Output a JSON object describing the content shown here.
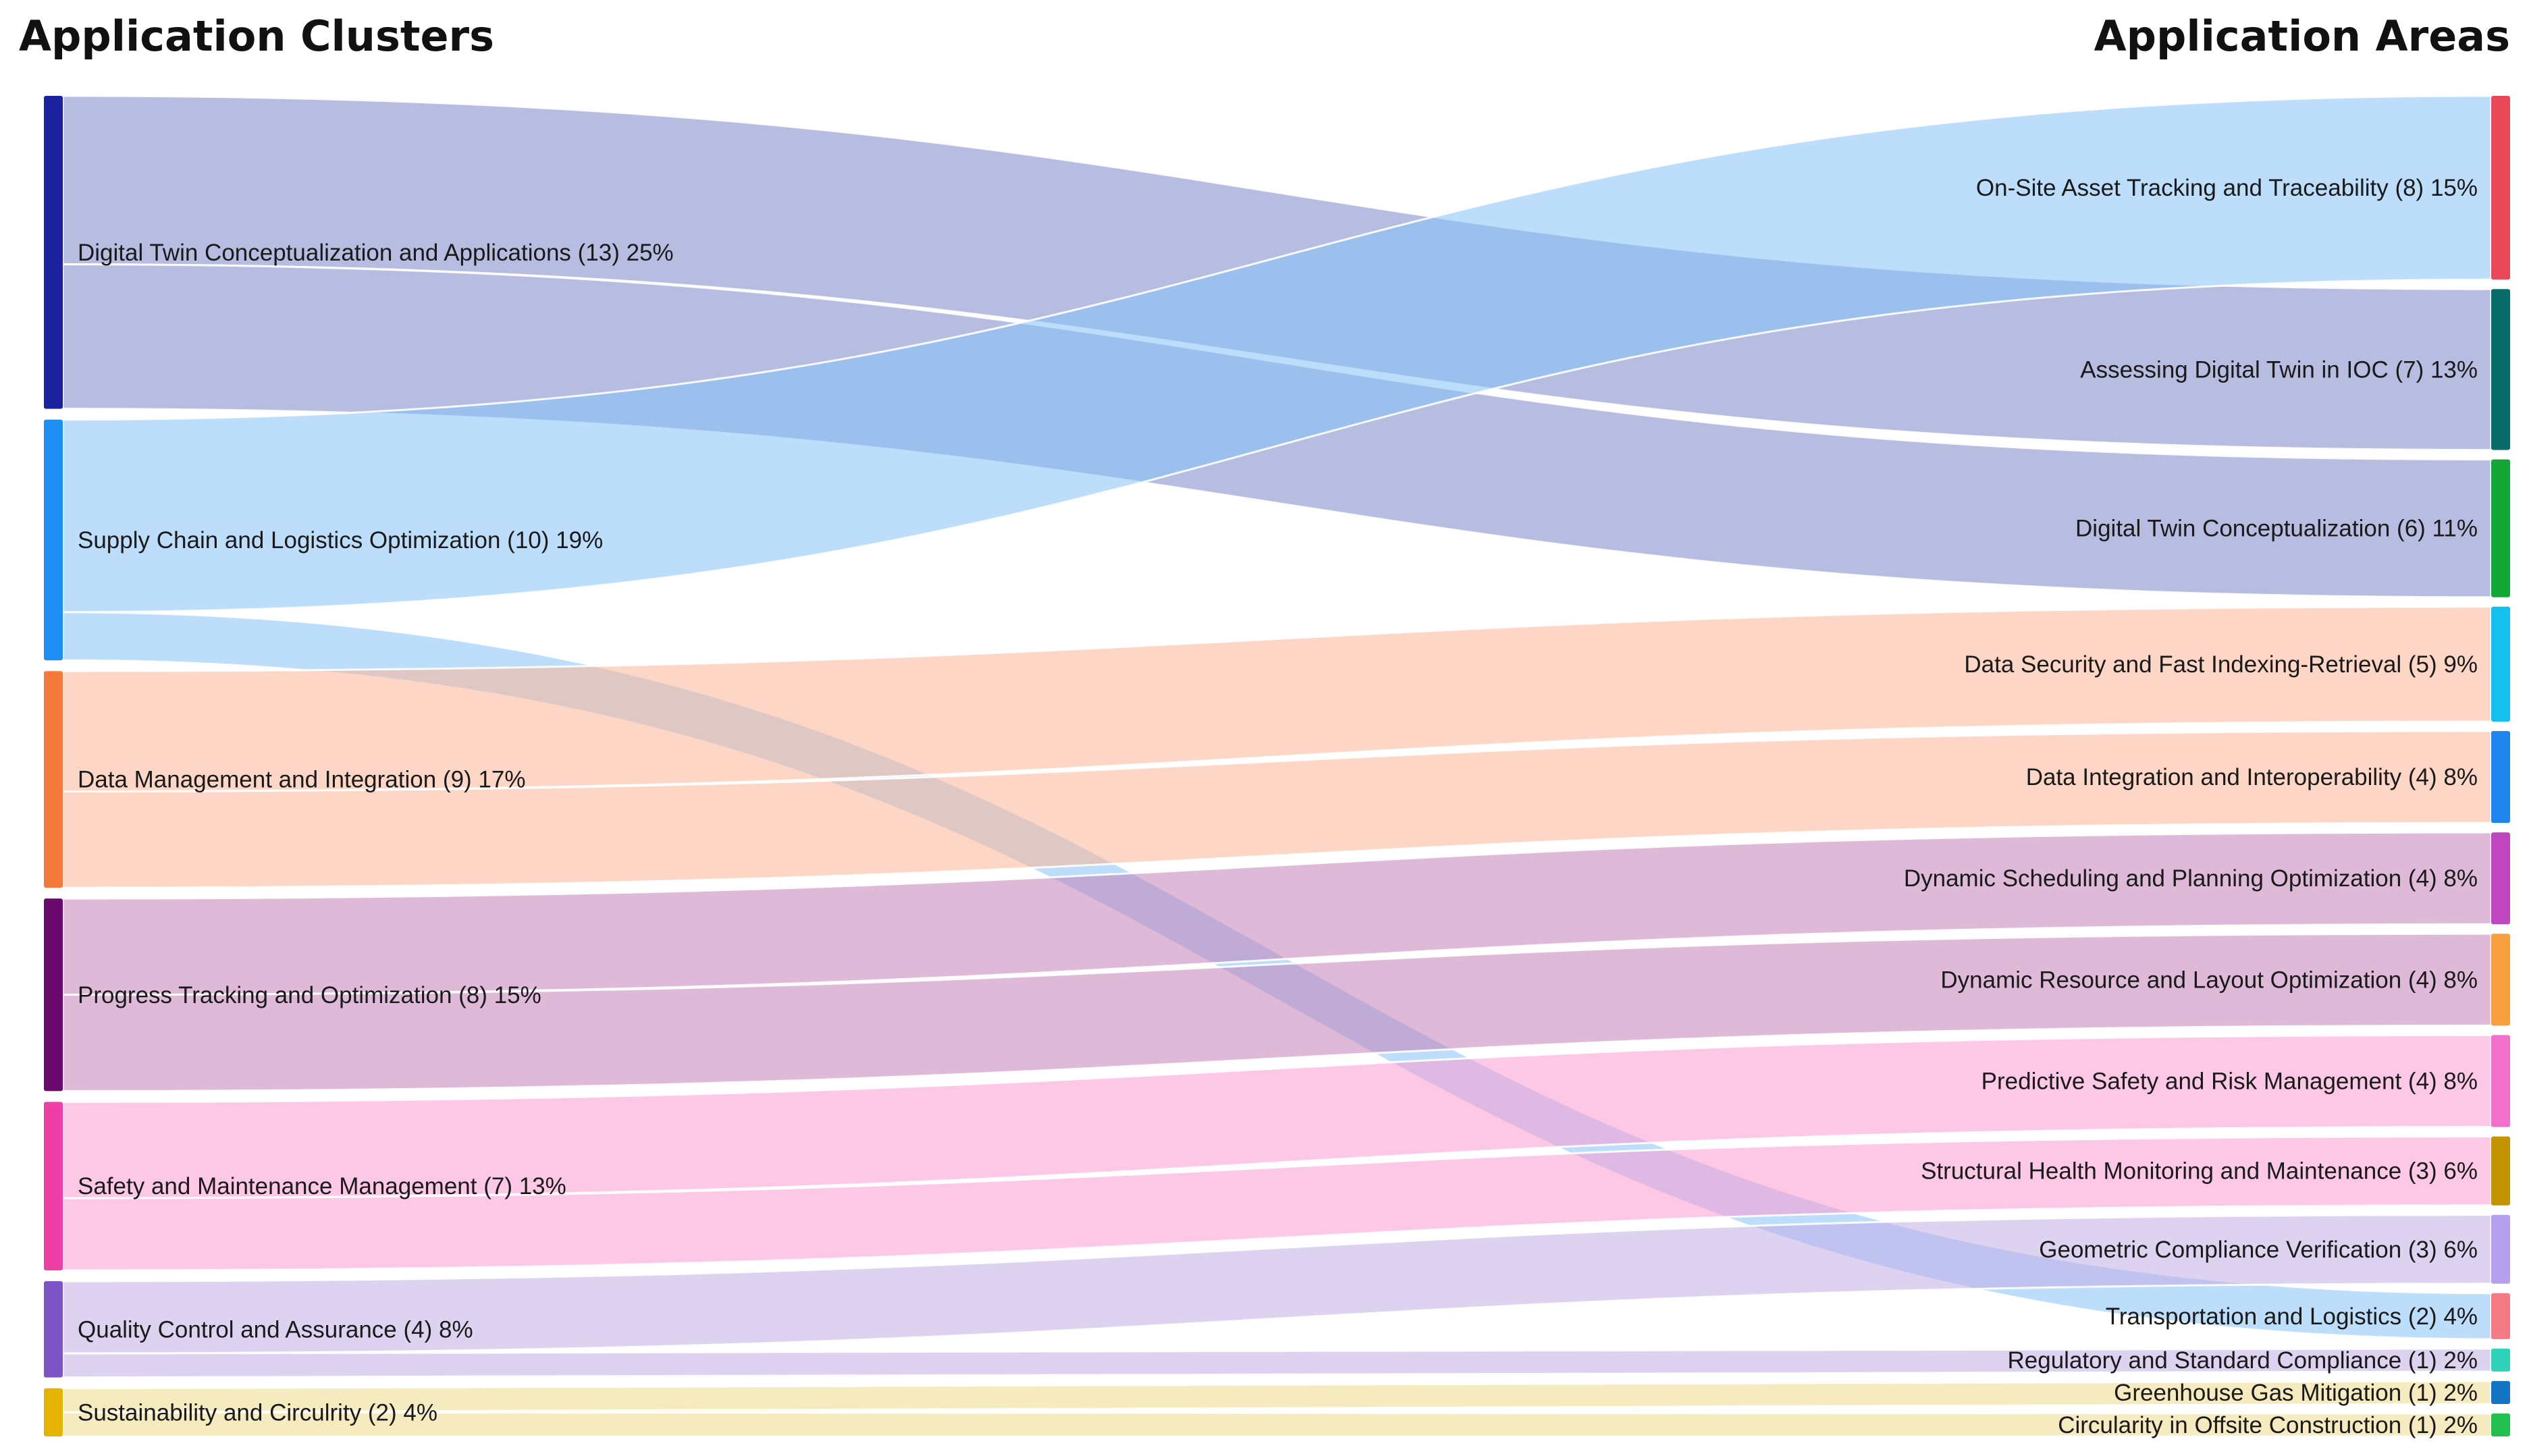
{
  "header": {
    "left_title": "Application Clusters",
    "right_title": "Application Areas"
  },
  "chart_data": {
    "type": "sankey",
    "unit": "studies",
    "sources": [
      {
        "id": "s1",
        "name": "Digital Twin Conceptualization and Applications",
        "count": 13,
        "percent": "25%",
        "color": "#1a22a0",
        "flow_color": "#7b86c8",
        "label": "Digital Twin Conceptualization and Applications (13) 25%"
      },
      {
        "id": "s2",
        "name": "Supply Chain and Logistics Optimization",
        "count": 10,
        "percent": "19%",
        "color": "#1e90f5",
        "flow_color": "#86c2f7",
        "label": "Supply Chain and Logistics Optimization (10) 19%"
      },
      {
        "id": "s3",
        "name": "Data Management and Integration",
        "count": 9,
        "percent": "17%",
        "color": "#f57a3a",
        "flow_color": "#fbb596",
        "label": "Data Management and Integration (9) 17%"
      },
      {
        "id": "s4",
        "name": "Progress Tracking and Optimization",
        "count": 8,
        "percent": "15%",
        "color": "#6a0a6e",
        "flow_color": "#c27fb8",
        "label": "Progress Tracking and Optimization (8) 15%"
      },
      {
        "id": "s5",
        "name": "Safety and Maintenance Management",
        "count": 7,
        "percent": "13%",
        "color": "#ee3fa6",
        "flow_color": "#fb9ad2",
        "label": "Safety and Maintenance Management (7) 13%"
      },
      {
        "id": "s6",
        "name": "Quality Control and Assurance",
        "count": 4,
        "percent": "8%",
        "color": "#7d55c7",
        "flow_color": "#c2ade6",
        "label": "Quality Control and Assurance (4) 8%"
      },
      {
        "id": "s7",
        "name": "Sustainability and Circulrity",
        "count": 2,
        "percent": "4%",
        "color": "#e5b400",
        "flow_color": "#eed98a",
        "label": "Sustainability and Circulrity (2) 4%"
      }
    ],
    "targets": [
      {
        "id": "t1",
        "name": "On-Site Asset Tracking and Traceability",
        "count": 8,
        "percent": "15%",
        "color": "#e84858",
        "label": "On-Site Asset Tracking and Traceability (8) 15%"
      },
      {
        "id": "t2",
        "name": "Assessing Digital Twin in IOC",
        "count": 7,
        "percent": "13%",
        "color": "#0a6b6b",
        "label": "Assessing Digital Twin in IOC (7) 13%"
      },
      {
        "id": "t3",
        "name": "Digital Twin Conceptualization",
        "count": 6,
        "percent": "11%",
        "color": "#16a638",
        "label": "Digital Twin Conceptualization (6) 11%"
      },
      {
        "id": "t4",
        "name": "Data Security and Fast Indexing-Retrieval",
        "count": 5,
        "percent": "9%",
        "color": "#16c0ee",
        "label": "Data Security and Fast Indexing-Retrieval (5) 9%"
      },
      {
        "id": "t5",
        "name": "Data Integration and Interoperability",
        "count": 4,
        "percent": "8%",
        "color": "#1e85ee",
        "label": "Data Integration and Interoperability (4) 8%"
      },
      {
        "id": "t6",
        "name": "Dynamic Scheduling and Planning Optimization",
        "count": 4,
        "percent": "8%",
        "color": "#c046c0",
        "label": "Dynamic Scheduling and Planning Optimization (4) 8%"
      },
      {
        "id": "t7",
        "name": "Dynamic Resource and Layout Optimization",
        "count": 4,
        "percent": "8%",
        "color": "#f8a040",
        "label": "Dynamic Resource and Layout Optimization (4) 8%"
      },
      {
        "id": "t8",
        "name": "Predictive Safety and Risk Management",
        "count": 4,
        "percent": "8%",
        "color": "#f070cc",
        "label": "Predictive Safety and Risk Management (4) 8%"
      },
      {
        "id": "t9",
        "name": "Structural Health Monitoring and Maintenance",
        "count": 3,
        "percent": "6%",
        "color": "#c49400",
        "label": "Structural Health Monitoring and Maintenance (3) 6%"
      },
      {
        "id": "t10",
        "name": "Geometric Compliance Verification",
        "count": 3,
        "percent": "6%",
        "color": "#b5a0ee",
        "label": "Geometric Compliance Verification (3) 6%"
      },
      {
        "id": "t11",
        "name": "Transportation and Logistics",
        "count": 2,
        "percent": "4%",
        "color": "#f47a86",
        "label": "Transportation and Logistics (2) 4%"
      },
      {
        "id": "t12",
        "name": "Regulatory and Standard Compliance",
        "count": 1,
        "percent": "2%",
        "color": "#2ed2b8",
        "label": "Regulatory and Standard Compliance (1) 2%"
      },
      {
        "id": "t13",
        "name": "Greenhouse Gas Mitigation",
        "count": 1,
        "percent": "2%",
        "color": "#1275c4",
        "label": "Greenhouse Gas Mitigation (1) 2%"
      },
      {
        "id": "t14",
        "name": "Circularity in Offsite Construction",
        "count": 1,
        "percent": "2%",
        "color": "#22c050",
        "label": "Circularity in Offsite Construction (1) 2%"
      }
    ],
    "links": [
      {
        "source": "s1",
        "target": "t2",
        "value": 7
      },
      {
        "source": "s1",
        "target": "t3",
        "value": 6
      },
      {
        "source": "s2",
        "target": "t1",
        "value": 8
      },
      {
        "source": "s2",
        "target": "t11",
        "value": 2
      },
      {
        "source": "s3",
        "target": "t4",
        "value": 5
      },
      {
        "source": "s3",
        "target": "t5",
        "value": 4
      },
      {
        "source": "s4",
        "target": "t6",
        "value": 4
      },
      {
        "source": "s4",
        "target": "t7",
        "value": 4
      },
      {
        "source": "s5",
        "target": "t8",
        "value": 4
      },
      {
        "source": "s5",
        "target": "t9",
        "value": 3
      },
      {
        "source": "s6",
        "target": "t10",
        "value": 3
      },
      {
        "source": "s6",
        "target": "t12",
        "value": 1
      },
      {
        "source": "s7",
        "target": "t13",
        "value": 1
      },
      {
        "source": "s7",
        "target": "t14",
        "value": 1
      }
    ]
  }
}
